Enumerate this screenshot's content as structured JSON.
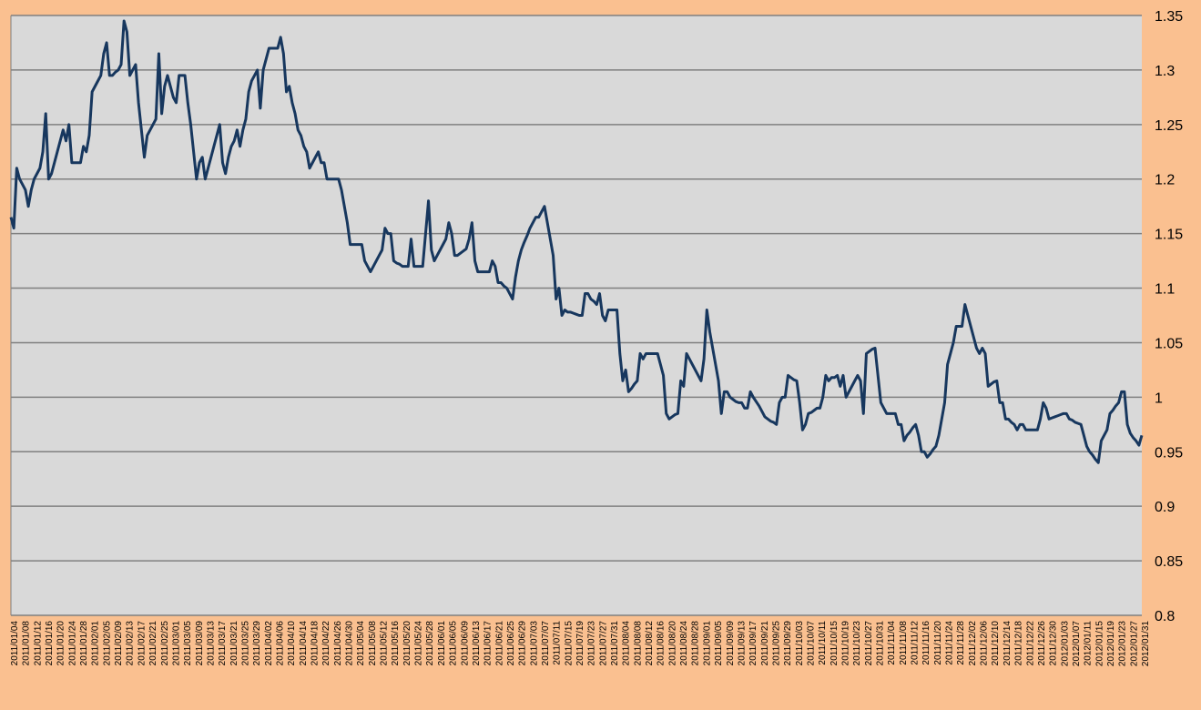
{
  "colors": {
    "background": "#FAC090",
    "plot_area": "#D9D9D9",
    "gridline": "#808080",
    "series_line": "#17375E",
    "text": "#000000"
  },
  "chart_data": {
    "type": "line",
    "title": "",
    "xlabel": "",
    "ylabel": "",
    "y_axis_position": "right",
    "ylim": [
      0.8,
      1.35
    ],
    "yticks": [
      "0.8",
      "0.85",
      "0.9",
      "0.95",
      "1",
      "1.05",
      "1.1",
      "1.15",
      "1.2",
      "1.25",
      "1.3",
      "1.35"
    ],
    "grid": "horizontal",
    "legend": "none",
    "x_tick_labels": [
      "2011/01/04",
      "2011/01/08",
      "2011/01/12",
      "2011/01/16",
      "2011/01/20",
      "2011/01/24",
      "2011/01/28",
      "2011/02/01",
      "2011/02/05",
      "2011/02/09",
      "2011/02/13",
      "2011/02/17",
      "2011/02/21",
      "2011/02/25",
      "2011/03/01",
      "2011/03/05",
      "2011/03/09",
      "2011/03/13",
      "2011/03/17",
      "2011/03/21",
      "2011/03/25",
      "2011/03/29",
      "2011/04/02",
      "2011/04/06",
      "2011/04/10",
      "2011/04/14",
      "2011/04/18",
      "2011/04/22",
      "2011/04/26",
      "2011/04/30",
      "2011/05/04",
      "2011/05/08",
      "2011/05/12",
      "2011/05/16",
      "2011/05/20",
      "2011/05/24",
      "2011/05/28",
      "2011/06/01",
      "2011/06/05",
      "2011/06/09",
      "2011/06/13",
      "2011/06/17",
      "2011/06/21",
      "2011/06/25",
      "2011/06/29",
      "2011/07/03",
      "2011/07/07",
      "2011/07/11",
      "2011/07/15",
      "2011/07/19",
      "2011/07/23",
      "2011/07/27",
      "2011/07/31",
      "2011/08/04",
      "2011/08/08",
      "2011/08/12",
      "2011/08/16",
      "2011/08/20",
      "2011/08/24",
      "2011/08/28",
      "2011/09/01",
      "2011/09/05",
      "2011/09/09",
      "2011/09/13",
      "2011/09/17",
      "2011/09/21",
      "2011/09/25",
      "2011/09/29",
      "2011/10/03",
      "2011/10/07",
      "2011/10/11",
      "2011/10/15",
      "2011/10/19",
      "2011/10/23",
      "2011/10/27",
      "2011/10/31",
      "2011/11/04",
      "2011/11/08",
      "2011/11/12",
      "2011/11/16",
      "2011/11/20",
      "2011/11/24",
      "2011/11/28",
      "2011/12/02",
      "2011/12/06",
      "2011/12/10",
      "2011/12/14",
      "2011/12/18",
      "2011/12/22",
      "2011/12/26",
      "2011/12/30",
      "2012/01/03",
      "2012/01/07",
      "2012/01/11",
      "2012/01/15",
      "2012/01/19",
      "2012/01/23",
      "2012/01/27",
      "2012/01/31"
    ],
    "series": [
      {
        "values": [
          1.165,
          1.155,
          1.21,
          1.2,
          1.195,
          1.19,
          1.175,
          1.19,
          1.2,
          1.205,
          1.21,
          1.225,
          1.26,
          1.2,
          1.205,
          1.215,
          1.225,
          1.235,
          1.245,
          1.235,
          1.25,
          1.215,
          1.215,
          1.215,
          1.215,
          1.23,
          1.225,
          1.24,
          1.28,
          1.285,
          1.29,
          1.295,
          1.315,
          1.325,
          1.295,
          1.295,
          1.298,
          1.3,
          1.305,
          1.345,
          1.335,
          1.295,
          1.3,
          1.305,
          1.27,
          1.245,
          1.22,
          1.24,
          1.245,
          1.25,
          1.255,
          1.315,
          1.26,
          1.285,
          1.295,
          1.285,
          1.275,
          1.27,
          1.295,
          1.295,
          1.295,
          1.27,
          1.25,
          1.225,
          1.2,
          1.215,
          1.22,
          1.2,
          1.21,
          1.22,
          1.23,
          1.24,
          1.25,
          1.215,
          1.205,
          1.22,
          1.23,
          1.235,
          1.245,
          1.23,
          1.245,
          1.255,
          1.28,
          1.29,
          1.295,
          1.3,
          1.265,
          1.3,
          1.31,
          1.32,
          1.32,
          1.32,
          1.32,
          1.33,
          1.315,
          1.28,
          1.285,
          1.27,
          1.26,
          1.245,
          1.24,
          1.23,
          1.225,
          1.21,
          1.215,
          1.22,
          1.225,
          1.215,
          1.215,
          1.2,
          1.2,
          1.2,
          1.2,
          1.2,
          1.19,
          1.175,
          1.16,
          1.14,
          1.14,
          1.14,
          1.14,
          1.14,
          1.125,
          1.12,
          1.115,
          1.12,
          1.125,
          1.13,
          1.135,
          1.155,
          1.15,
          1.15,
          1.125,
          1.123,
          1.122,
          1.12,
          1.12,
          1.12,
          1.145,
          1.12,
          1.12,
          1.12,
          1.12,
          1.15,
          1.18,
          1.135,
          1.125,
          1.13,
          1.135,
          1.14,
          1.145,
          1.16,
          1.15,
          1.13,
          1.13,
          1.132,
          1.134,
          1.136,
          1.145,
          1.16,
          1.125,
          1.115,
          1.115,
          1.115,
          1.115,
          1.115,
          1.125,
          1.12,
          1.105,
          1.105,
          1.102,
          1.1,
          1.095,
          1.09,
          1.11,
          1.125,
          1.135,
          1.142,
          1.148,
          1.155,
          1.16,
          1.165,
          1.165,
          1.17,
          1.175,
          1.16,
          1.145,
          1.13,
          1.09,
          1.1,
          1.075,
          1.08,
          1.078,
          1.078,
          1.077,
          1.076,
          1.075,
          1.075,
          1.095,
          1.095,
          1.09,
          1.088,
          1.085,
          1.095,
          1.075,
          1.07,
          1.08,
          1.08,
          1.08,
          1.08,
          1.04,
          1.015,
          1.025,
          1.005,
          1.008,
          1.012,
          1.015,
          1.04,
          1.035,
          1.04,
          1.04,
          1.04,
          1.04,
          1.04,
          1.03,
          1.02,
          0.985,
          0.98,
          0.982,
          0.984,
          0.985,
          1.015,
          1.01,
          1.04,
          1.035,
          1.03,
          1.025,
          1.02,
          1.015,
          1.035,
          1.08,
          1.06,
          1.045,
          1.03,
          1.015,
          0.985,
          1.005,
          1.005,
          1.0,
          0.998,
          0.996,
          0.995,
          0.995,
          0.99,
          0.99,
          1.005,
          1.0,
          0.996,
          0.992,
          0.987,
          0.982,
          0.98,
          0.978,
          0.977,
          0.975,
          0.995,
          1.0,
          1.0,
          1.02,
          1.018,
          1.016,
          1.015,
          0.995,
          0.97,
          0.975,
          0.985,
          0.986,
          0.988,
          0.99,
          0.99,
          1.0,
          1.02,
          1.015,
          1.018,
          1.018,
          1.02,
          1.01,
          1.02,
          1.0,
          1.005,
          1.01,
          1.015,
          1.02,
          1.015,
          0.985,
          1.04,
          1.042,
          1.044,
          1.045,
          1.02,
          0.995,
          0.99,
          0.985,
          0.985,
          0.985,
          0.985,
          0.975,
          0.975,
          0.96,
          0.965,
          0.968,
          0.972,
          0.975,
          0.965,
          0.95,
          0.95,
          0.945,
          0.948,
          0.952,
          0.955,
          0.965,
          0.98,
          0.995,
          1.03,
          1.04,
          1.05,
          1.065,
          1.065,
          1.065,
          1.085,
          1.075,
          1.065,
          1.055,
          1.045,
          1.04,
          1.045,
          1.04,
          1.01,
          1.012,
          1.014,
          1.015,
          0.995,
          0.995,
          0.98,
          0.98,
          0.977,
          0.975,
          0.97,
          0.975,
          0.975,
          0.97,
          0.97,
          0.97,
          0.97,
          0.97,
          0.98,
          0.995,
          0.99,
          0.98,
          0.981,
          0.982,
          0.983,
          0.984,
          0.985,
          0.985,
          0.98,
          0.979,
          0.977,
          0.976,
          0.975,
          0.965,
          0.955,
          0.95,
          0.947,
          0.943,
          0.94,
          0.96,
          0.965,
          0.97,
          0.985,
          0.988,
          0.992,
          0.995,
          1.005,
          1.005,
          0.975,
          0.967,
          0.963,
          0.96,
          0.956,
          0.965
        ]
      }
    ]
  }
}
